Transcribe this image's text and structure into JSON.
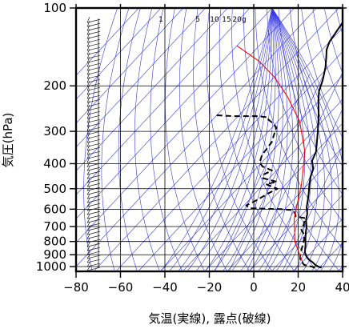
{
  "chart_data": {
    "type": "line",
    "chart_kind": "skew-T log-p thermodynamic diagram",
    "xlabel": "気温(実線), 露点(破線)",
    "ylabel": "気圧(hPa)",
    "x_ticks": [
      -80,
      -60,
      -40,
      -20,
      0,
      20,
      40
    ],
    "y_ticks": [
      100,
      200,
      300,
      400,
      500,
      600,
      700,
      800,
      900,
      1000
    ],
    "y_scale": "log, inverted",
    "xlim": [
      -80,
      40
    ],
    "ylim": [
      1050,
      100
    ],
    "mixing_ratio_labels": [
      "1",
      "5",
      "10",
      "15",
      "20g"
    ],
    "series": [
      {
        "style": "solid",
        "color": "#000000",
        "points": [
          [
            31,
            1010
          ],
          [
            29,
            1000
          ],
          [
            27,
            985
          ],
          [
            25,
            965
          ],
          [
            22,
            940
          ],
          [
            20,
            920
          ],
          [
            17,
            880
          ],
          [
            14,
            820
          ],
          [
            11,
            770
          ],
          [
            9,
            735
          ],
          [
            7,
            700
          ],
          [
            4,
            660
          ],
          [
            2,
            625
          ],
          [
            -1,
            590
          ],
          [
            -3,
            560
          ],
          [
            -6,
            520
          ],
          [
            -9,
            485
          ],
          [
            -12,
            450
          ],
          [
            -14,
            420
          ],
          [
            -18,
            390
          ],
          [
            -20,
            360
          ],
          [
            -25,
            320
          ],
          [
            -30,
            285
          ],
          [
            -35,
            255
          ],
          [
            -40,
            230
          ],
          [
            -44,
            210
          ],
          [
            -47,
            190
          ],
          [
            -51,
            170
          ],
          [
            -55,
            155
          ],
          [
            -58,
            145
          ],
          [
            -60,
            135
          ],
          [
            -61,
            125
          ],
          [
            -62,
            115
          ],
          [
            -63,
            105
          ],
          [
            -65,
            100
          ]
        ]
      },
      {
        "style": "dashed",
        "color": "#000000",
        "points": [
          [
            28,
            1010
          ],
          [
            26,
            1000
          ],
          [
            22,
            985
          ],
          [
            18,
            940
          ],
          [
            16,
            900
          ],
          [
            14,
            850
          ],
          [
            12,
            800
          ],
          [
            10,
            760
          ],
          [
            6,
            720
          ],
          [
            5,
            690
          ],
          [
            3,
            650
          ],
          [
            -2,
            640
          ],
          [
            -4,
            620
          ],
          [
            -6,
            605
          ],
          [
            -12,
            600
          ],
          [
            -26,
            595
          ],
          [
            -29,
            580
          ],
          [
            -27,
            560
          ],
          [
            -24,
            520
          ],
          [
            -22,
            500
          ],
          [
            -29,
            480
          ],
          [
            -25,
            470
          ],
          [
            -33,
            455
          ],
          [
            -34,
            440
          ],
          [
            -32,
            425
          ],
          [
            -38,
            410
          ],
          [
            -41,
            395
          ],
          [
            -43,
            370
          ],
          [
            -44,
            330
          ],
          [
            -47,
            300
          ],
          [
            -48,
            290
          ],
          [
            -51,
            280
          ],
          [
            -55,
            270
          ],
          [
            -56,
            265
          ],
          [
            -61,
            262
          ],
          [
            -72,
            262
          ],
          [
            -80,
            260
          ]
        ]
      },
      {
        "style": "solid",
        "color": "#ff0000",
        "points": [
          [
            20,
            960
          ],
          [
            8,
            800
          ],
          [
            -2,
            650
          ],
          [
            -13,
            480
          ],
          [
            -25,
            360
          ],
          [
            -40,
            275
          ],
          [
            -56,
            220
          ],
          [
            -70,
            185
          ],
          [
            -84,
            160
          ],
          [
            -100,
            140
          ]
        ]
      }
    ],
    "wind_barbs": "plotted along left edge at each level"
  }
}
